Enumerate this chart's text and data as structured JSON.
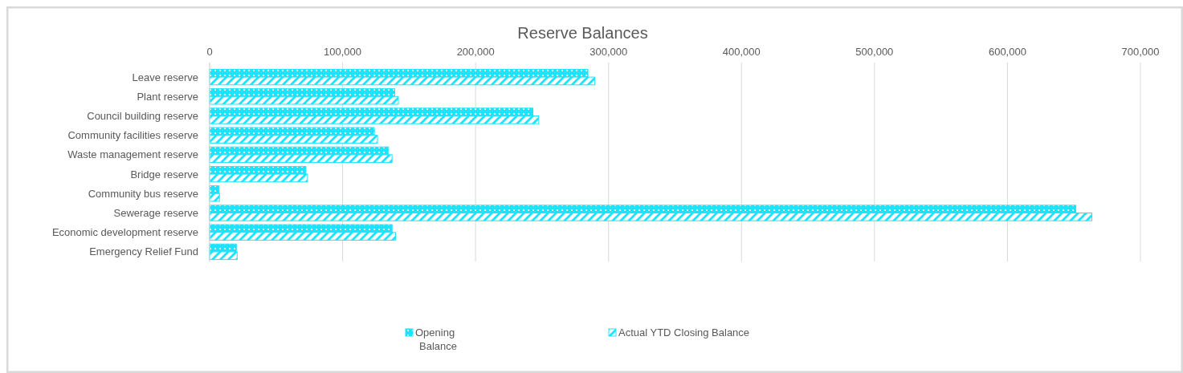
{
  "chart_data": {
    "type": "bar",
    "orientation": "horizontal",
    "title": "Reserve Balances",
    "categories": [
      "Leave reserve",
      "Plant reserve",
      "Council building reserve",
      "Community facilities reserve",
      "Waste management reserve",
      "Bridge reserve",
      "Community bus reserve",
      "Sewerage reserve",
      "Economic development reserve",
      "Emergency Relief Fund"
    ],
    "series": [
      {
        "name": "Opening Balance",
        "color": "#1ee3ff",
        "values": [
          284500,
          139200,
          243100,
          123900,
          134600,
          72400,
          7000,
          651400,
          137200,
          20100
        ]
      },
      {
        "name": "Actual YTD Closing Balance",
        "color": "#1ee3ff",
        "values": [
          289700,
          141900,
          247500,
          126200,
          137200,
          73600,
          7400,
          663500,
          139800,
          20700
        ]
      }
    ],
    "xlim": [
      0,
      700000
    ],
    "xticks": [
      {
        "value": 0,
        "label": "0"
      },
      {
        "value": 100000,
        "label": "100,000"
      },
      {
        "value": 200000,
        "label": "200,000"
      },
      {
        "value": 300000,
        "label": "300,000"
      },
      {
        "value": 400000,
        "label": "400,000"
      },
      {
        "value": 500000,
        "label": "500,000"
      },
      {
        "value": 600000,
        "label": "600,000"
      },
      {
        "value": 700000,
        "label": "700,000"
      }
    ],
    "grid": "x",
    "legend": "bottom"
  }
}
